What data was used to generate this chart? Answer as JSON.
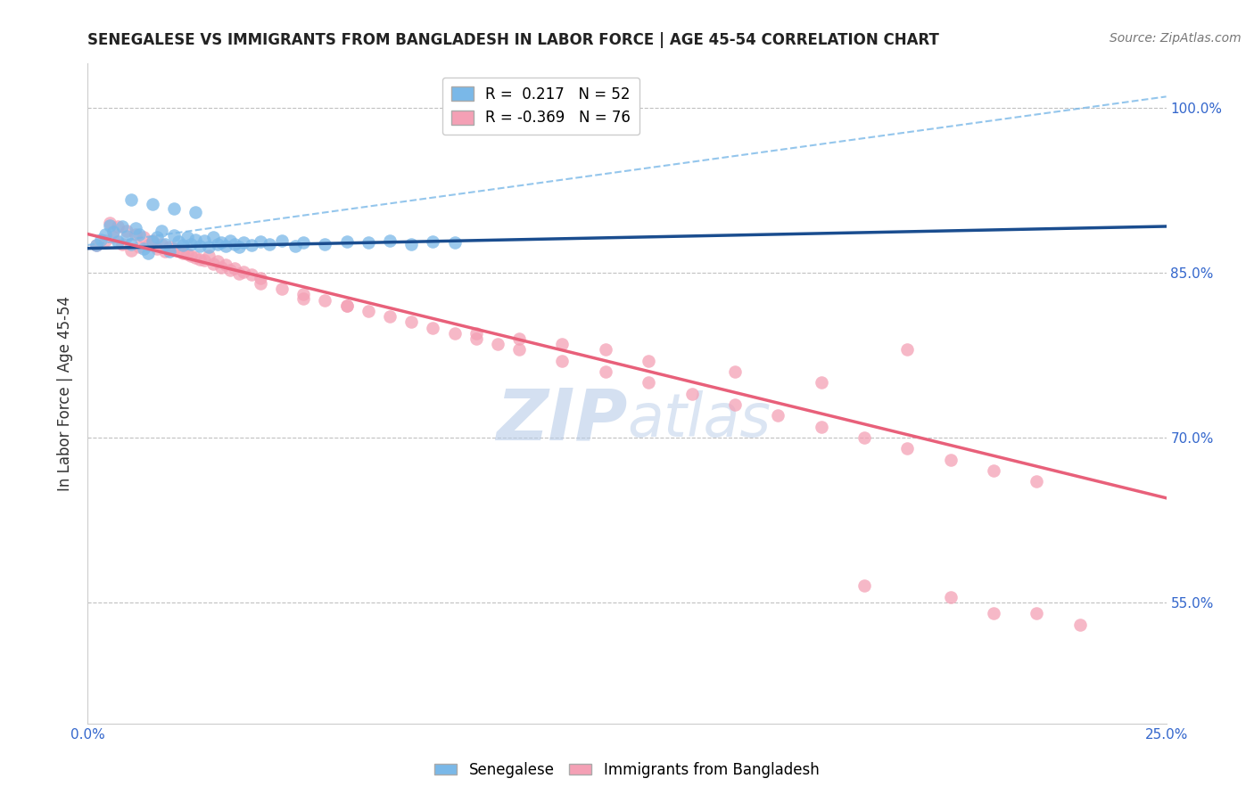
{
  "title": "SENEGALESE VS IMMIGRANTS FROM BANGLADESH IN LABOR FORCE | AGE 45-54 CORRELATION CHART",
  "source": "Source: ZipAtlas.com",
  "ylabel": "In Labor Force | Age 45-54",
  "xmin": 0.0,
  "xmax": 0.25,
  "ymin": 0.44,
  "ymax": 1.04,
  "yticks": [
    0.55,
    0.7,
    0.85,
    1.0
  ],
  "ytick_labels": [
    "55.0%",
    "70.0%",
    "85.0%",
    "100.0%"
  ],
  "xticks": [
    0.0,
    0.025,
    0.05,
    0.075,
    0.1,
    0.125,
    0.15,
    0.175,
    0.2,
    0.225,
    0.25
  ],
  "xtick_labels": [
    "0.0%",
    "",
    "",
    "",
    "",
    "",
    "",
    "",
    "",
    "",
    "25.0%"
  ],
  "r_blue": 0.217,
  "n_blue": 52,
  "r_pink": -0.369,
  "n_pink": 76,
  "blue_color": "#7ab8e8",
  "pink_color": "#f4a0b5",
  "blue_solid_color": "#1a4d8f",
  "blue_dashed_color": "#7ab8e8",
  "pink_solid_color": "#e8607a",
  "watermark_zip": "ZIP",
  "watermark_atlas": "atlas",
  "legend_entries": [
    "Senegalese",
    "Immigrants from Bangladesh"
  ],
  "blue_x": [
    0.002,
    0.003,
    0.004,
    0.005,
    0.006,
    0.007,
    0.008,
    0.009,
    0.01,
    0.011,
    0.012,
    0.013,
    0.014,
    0.015,
    0.016,
    0.017,
    0.018,
    0.019,
    0.02,
    0.021,
    0.022,
    0.023,
    0.024,
    0.025,
    0.026,
    0.027,
    0.028,
    0.029,
    0.03,
    0.031,
    0.032,
    0.033,
    0.034,
    0.035,
    0.036,
    0.038,
    0.04,
    0.042,
    0.045,
    0.048,
    0.05,
    0.055,
    0.06,
    0.065,
    0.07,
    0.075,
    0.08,
    0.085,
    0.01,
    0.015,
    0.02,
    0.025
  ],
  "blue_y": [
    0.875,
    0.88,
    0.885,
    0.893,
    0.887,
    0.878,
    0.892,
    0.883,
    0.876,
    0.89,
    0.885,
    0.872,
    0.868,
    0.878,
    0.882,
    0.888,
    0.876,
    0.869,
    0.884,
    0.878,
    0.875,
    0.882,
    0.876,
    0.88,
    0.874,
    0.879,
    0.873,
    0.882,
    0.876,
    0.877,
    0.874,
    0.879,
    0.876,
    0.873,
    0.877,
    0.875,
    0.878,
    0.876,
    0.879,
    0.874,
    0.877,
    0.876,
    0.878,
    0.877,
    0.879,
    0.876,
    0.878,
    0.877,
    0.916,
    0.912,
    0.908,
    0.905
  ],
  "pink_x": [
    0.002,
    0.004,
    0.006,
    0.008,
    0.01,
    0.012,
    0.014,
    0.016,
    0.018,
    0.02,
    0.022,
    0.024,
    0.026,
    0.028,
    0.03,
    0.032,
    0.034,
    0.036,
    0.038,
    0.04,
    0.005,
    0.007,
    0.009,
    0.011,
    0.013,
    0.015,
    0.017,
    0.019,
    0.021,
    0.023,
    0.025,
    0.027,
    0.029,
    0.031,
    0.033,
    0.035,
    0.04,
    0.045,
    0.05,
    0.055,
    0.06,
    0.065,
    0.07,
    0.075,
    0.08,
    0.085,
    0.09,
    0.095,
    0.1,
    0.11,
    0.12,
    0.13,
    0.14,
    0.15,
    0.16,
    0.17,
    0.18,
    0.19,
    0.2,
    0.21,
    0.22,
    0.05,
    0.06,
    0.1,
    0.12,
    0.13,
    0.15,
    0.17,
    0.09,
    0.11,
    0.18,
    0.2,
    0.22,
    0.19,
    0.21,
    0.23
  ],
  "pink_y": [
    0.875,
    0.879,
    0.882,
    0.876,
    0.87,
    0.873,
    0.875,
    0.872,
    0.869,
    0.872,
    0.868,
    0.865,
    0.862,
    0.865,
    0.86,
    0.857,
    0.854,
    0.851,
    0.848,
    0.845,
    0.895,
    0.892,
    0.888,
    0.885,
    0.882,
    0.879,
    0.876,
    0.873,
    0.87,
    0.867,
    0.864,
    0.861,
    0.858,
    0.855,
    0.852,
    0.849,
    0.84,
    0.835,
    0.83,
    0.825,
    0.82,
    0.815,
    0.81,
    0.805,
    0.8,
    0.795,
    0.79,
    0.785,
    0.78,
    0.77,
    0.76,
    0.75,
    0.74,
    0.73,
    0.72,
    0.71,
    0.7,
    0.69,
    0.68,
    0.67,
    0.66,
    0.826,
    0.82,
    0.79,
    0.78,
    0.77,
    0.76,
    0.75,
    0.795,
    0.785,
    0.565,
    0.555,
    0.54,
    0.78,
    0.54,
    0.53
  ],
  "blue_trend_x0": 0.0,
  "blue_trend_x1": 0.25,
  "blue_trend_y0": 0.872,
  "blue_trend_y1": 0.892,
  "blue_dash_trend_x0": 0.0,
  "blue_dash_trend_x1": 0.25,
  "blue_dash_trend_y0": 0.875,
  "blue_dash_trend_y1": 1.01,
  "pink_trend_x0": 0.0,
  "pink_trend_x1": 0.25,
  "pink_trend_y0": 0.885,
  "pink_trend_y1": 0.645
}
